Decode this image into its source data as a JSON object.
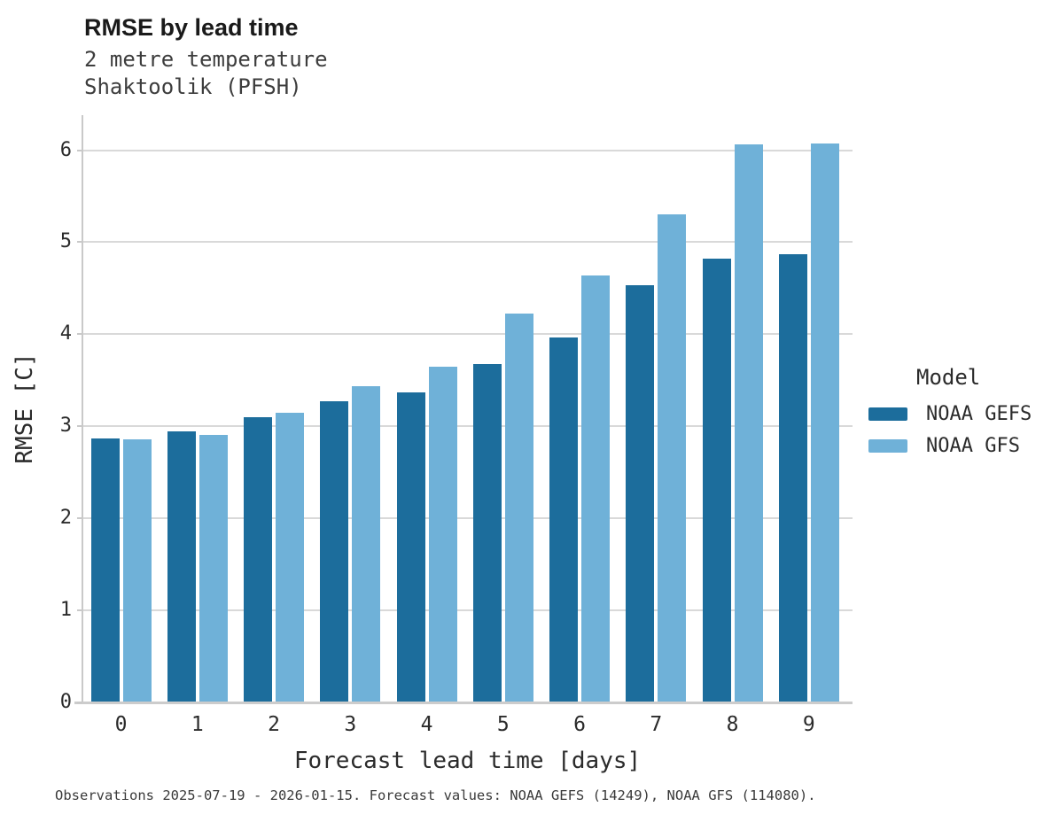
{
  "header": {
    "title": "RMSE by lead time",
    "subtitle_line1": "2 metre temperature",
    "subtitle_line2": "Shaktoolik (PFSH)"
  },
  "chart_data": {
    "type": "bar",
    "title": "RMSE by lead time",
    "subtitle": [
      "2 metre temperature",
      "Shaktoolik (PFSH)"
    ],
    "categories": [
      "0",
      "1",
      "2",
      "3",
      "4",
      "5",
      "6",
      "7",
      "8",
      "9"
    ],
    "series": [
      {
        "name": "NOAA GEFS",
        "color": "#1c6d9c",
        "values": [
          2.87,
          2.94,
          3.1,
          3.27,
          3.37,
          3.68,
          3.96,
          4.53,
          4.82,
          4.87
        ]
      },
      {
        "name": "NOAA GFS",
        "color": "#6fb1d8",
        "values": [
          2.86,
          2.91,
          3.15,
          3.44,
          3.65,
          4.22,
          4.64,
          5.3,
          6.06,
          6.07
        ]
      }
    ],
    "xlabel": "Forecast lead time [days]",
    "ylabel": "RMSE [C]",
    "ylim": [
      0,
      6.38
    ],
    "y_ticks": [
      0,
      1,
      2,
      3,
      4,
      5,
      6
    ],
    "grid": "horizontal",
    "legend_title": "Model",
    "legend_position": "right"
  },
  "legend": {
    "title": "Model",
    "items": [
      {
        "label": "NOAA GEFS",
        "color": "#1c6d9c"
      },
      {
        "label": "NOAA GFS",
        "color": "#6fb1d8"
      }
    ]
  },
  "footer": {
    "note": "Observations 2025-07-19 - 2026-01-15. Forecast values: NOAA GEFS (14249), NOAA GFS (114080)."
  },
  "colors": {
    "gridline": "#d9d9d9",
    "axis_line": "#c9c9c9",
    "title_text": "#1a1a1a",
    "subtitle_text": "#3d3d3d",
    "tick_text": "#2b2b2b"
  }
}
